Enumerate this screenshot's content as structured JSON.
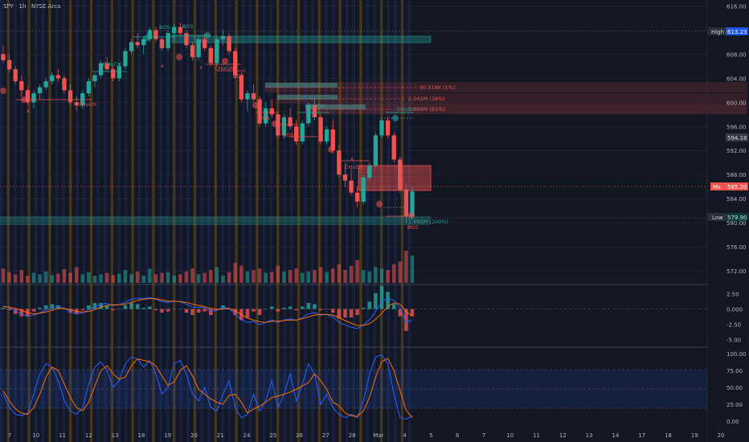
{
  "symbol_label": "SPY · 1h · NYSE Arca",
  "colors": {
    "background": "#131722",
    "bull": "#26a69a",
    "bear": "#ef5350",
    "orange_band": "#f5a623",
    "blue_band": "#2962ff",
    "macd": "#2962ff",
    "signal": "#ff6d00",
    "stoch_k": "#2962ff",
    "stoch_d": "#ff6d00"
  },
  "price_axis": {
    "ticks": [
      "616.00",
      "612.00",
      "608.00",
      "604.00",
      "600.00",
      "596.00",
      "592.00",
      "588.00",
      "584.00",
      "580.00",
      "576.00",
      "572.00"
    ],
    "high_tag": {
      "label": "High",
      "value": "613.23"
    },
    "low_tag": {
      "label": "Low",
      "value": "579.90"
    },
    "price_tag": {
      "value": "594.18"
    },
    "current_tag": {
      "label": "Ms",
      "value": "585.20"
    }
  },
  "macd_axis": {
    "ticks": [
      "2.50",
      "0.000",
      "-2.50",
      "-5.00"
    ]
  },
  "stoch_axis": {
    "ticks": [
      "100.00",
      "75.00",
      "50.00",
      "25.00",
      "0.00"
    ]
  },
  "time_axis": {
    "labels": [
      "7",
      "10",
      "11",
      "12",
      "13",
      "18",
      "19",
      "20",
      "21",
      "24",
      "25",
      "26",
      "27",
      "28",
      "Mar",
      "4",
      "5",
      "6",
      "7",
      "10",
      "11",
      "12",
      "13",
      "14",
      "17",
      "18",
      "19",
      "20"
    ]
  },
  "annotations": {
    "bos_1": "BOS",
    "bos_2": "BOS",
    "bos_3": "BOS",
    "bos_4": "BOS",
    "bos_5": "BOS",
    "bos_6": "BOS",
    "choch_1": "CHoCH",
    "choch_2": "CHoCH",
    "choch_3": "CHoCH",
    "choch_4": "CHoCH",
    "choch_5": "CHoCH",
    "choch_6": "CHoCH",
    "x_1": "x",
    "x_2": "x",
    "x_3": "x",
    "x_4": "x",
    "vol_1": "90.418K (1%)",
    "vol_2": "2.042M (38%)",
    "vol_3": "3.389M (61%)",
    "vol_4": "2.695M (100%)"
  },
  "chart_data": {
    "type": "candlestick",
    "ylim": [
      570,
      617
    ],
    "candles": [
      [
        608,
        609.5,
        606.5,
        607
      ],
      [
        607,
        608,
        605,
        605.5
      ],
      [
        605.5,
        606,
        603,
        603.5
      ],
      [
        603.5,
        604.5,
        601,
        602
      ],
      [
        602,
        602.5,
        599.5,
        600
      ],
      [
        600,
        602,
        599,
        601.5
      ],
      [
        601.5,
        603,
        600.5,
        602.5
      ],
      [
        602.5,
        604,
        602,
        603.5
      ],
      [
        603.5,
        605,
        603,
        604.5
      ],
      [
        604.5,
        605.5,
        603.5,
        604
      ],
      [
        604,
        604.5,
        601.5,
        602
      ],
      [
        602,
        603,
        599.5,
        600
      ],
      [
        600,
        601,
        598.5,
        599.5
      ],
      [
        599.5,
        602,
        599,
        601.5
      ],
      [
        601.5,
        604,
        601,
        603.5
      ],
      [
        603.5,
        605,
        602.5,
        604.5
      ],
      [
        604.5,
        607,
        604,
        606.5
      ],
      [
        606.5,
        607.5,
        605,
        605.5
      ],
      [
        605.5,
        606,
        603.5,
        604
      ],
      [
        604,
        606.5,
        603.5,
        606
      ],
      [
        606,
        609,
        605.5,
        608.5
      ],
      [
        608.5,
        610.5,
        608,
        610
      ],
      [
        610,
        611.5,
        609,
        609.5
      ],
      [
        609.5,
        611,
        608,
        610.5
      ],
      [
        610.5,
        612.5,
        610,
        612
      ],
      [
        612,
        612.5,
        610,
        610.5
      ],
      [
        610.5,
        611,
        608.5,
        609
      ],
      [
        609,
        612,
        608.5,
        611.5
      ],
      [
        611.5,
        613,
        610.5,
        612.5
      ],
      [
        612.5,
        613.2,
        611,
        611.5
      ],
      [
        611.5,
        612,
        609,
        609.5
      ],
      [
        609.5,
        610,
        607,
        607.5
      ],
      [
        607.5,
        611,
        607,
        610.5
      ],
      [
        610.5,
        611.5,
        608.5,
        609
      ],
      [
        609,
        609.5,
        606,
        606.5
      ],
      [
        606.5,
        611,
        606,
        610.5
      ],
      [
        610.5,
        612,
        609.5,
        611
      ],
      [
        611,
        611.5,
        608,
        608.5
      ],
      [
        608.5,
        609,
        604,
        604.5
      ],
      [
        604.5,
        605,
        600,
        600.5
      ],
      [
        600.5,
        602,
        598.5,
        601.5
      ],
      [
        601.5,
        603,
        600,
        600.5
      ],
      [
        600.5,
        601,
        596,
        596.5
      ],
      [
        596.5,
        600,
        596,
        599
      ],
      [
        599,
        600.5,
        597.5,
        598
      ],
      [
        598,
        598.5,
        594,
        594.5
      ],
      [
        594.5,
        598,
        594,
        597.5
      ],
      [
        597.5,
        599,
        595.5,
        596
      ],
      [
        596,
        597,
        593,
        593.5
      ],
      [
        593.5,
        597,
        593,
        596.5
      ],
      [
        596.5,
        600,
        596,
        599.5
      ],
      [
        599.5,
        600.5,
        597,
        597.5
      ],
      [
        597.5,
        598,
        593,
        593.5
      ],
      [
        593.5,
        596,
        593,
        595.5
      ],
      [
        595.5,
        597,
        591.5,
        592
      ],
      [
        592,
        593,
        587.5,
        588
      ],
      [
        588,
        590,
        586,
        587
      ],
      [
        587,
        589,
        584.5,
        585
      ],
      [
        585,
        586,
        582.5,
        583.5
      ],
      [
        583.5,
        588,
        583,
        587.5
      ],
      [
        587.5,
        590,
        587,
        589.5
      ],
      [
        589.5,
        595,
        589,
        594.5
      ],
      [
        594.5,
        597.5,
        594,
        597
      ],
      [
        597,
        597.5,
        594,
        594.5
      ],
      [
        594.5,
        595,
        590,
        590.5
      ],
      [
        590.5,
        591,
        585,
        585.5
      ],
      [
        585.5,
        586.5,
        579.9,
        581
      ],
      [
        581,
        586,
        580.5,
        585.2
      ]
    ],
    "volume": [
      20,
      15,
      12,
      18,
      10,
      14,
      12,
      16,
      11,
      13,
      19,
      14,
      22,
      12,
      15,
      10,
      12,
      14,
      11,
      13,
      18,
      12,
      16,
      10,
      20,
      12,
      14,
      15,
      10,
      12,
      16,
      20,
      12,
      14,
      18,
      22,
      10,
      15,
      28,
      24,
      16,
      18,
      20,
      14,
      15,
      24,
      16,
      18,
      20,
      14,
      16,
      18,
      22,
      15,
      20,
      26,
      18,
      24,
      32,
      18,
      16,
      22,
      20,
      18,
      26,
      30,
      45,
      38
    ],
    "macd": [
      0.5,
      0.2,
      -0.3,
      -0.8,
      -1.2,
      -1.0,
      -0.6,
      -0.2,
      0.2,
      0.4,
      0.1,
      -0.4,
      -0.8,
      -0.6,
      -0.1,
      0.4,
      0.8,
      0.9,
      0.6,
      0.7,
      1.1,
      1.6,
      1.8,
      1.7,
      1.9,
      1.6,
      1.2,
      1.1,
      1.3,
      1.2,
      0.8,
      0.3,
      0.3,
      0.2,
      -0.4,
      -0.2,
      0.3,
      0.1,
      -0.8,
      -1.8,
      -2.2,
      -2.0,
      -2.6,
      -2.2,
      -1.8,
      -2.2,
      -1.8,
      -1.6,
      -1.9,
      -1.4,
      -0.8,
      -0.6,
      -1.0,
      -0.9,
      -1.3,
      -2.2,
      -2.6,
      -3.0,
      -3.2,
      -2.6,
      -1.8,
      -0.4,
      1.2,
      1.8,
      1.4,
      0.2,
      -2.2,
      -1.8
    ],
    "signal": [
      0.4,
      0.3,
      0.1,
      -0.2,
      -0.6,
      -0.8,
      -0.7,
      -0.5,
      -0.2,
      0.1,
      0.1,
      -0.1,
      -0.4,
      -0.5,
      -0.4,
      -0.1,
      0.3,
      0.6,
      0.7,
      0.7,
      0.8,
      1.1,
      1.4,
      1.6,
      1.7,
      1.7,
      1.5,
      1.3,
      1.3,
      1.2,
      1.1,
      0.8,
      0.6,
      0.4,
      0.1,
      -0.1,
      0.0,
      0.1,
      -0.3,
      -0.9,
      -1.5,
      -1.8,
      -2.1,
      -2.2,
      -2.0,
      -2.0,
      -1.9,
      -1.8,
      -1.8,
      -1.6,
      -1.3,
      -1.0,
      -0.9,
      -0.9,
      -1.0,
      -1.4,
      -1.9,
      -2.3,
      -2.7,
      -2.7,
      -2.4,
      -1.7,
      -0.7,
      0.4,
      1.0,
      0.8,
      -0.4,
      -1.2
    ],
    "stoch_k": [
      40,
      20,
      10,
      8,
      12,
      40,
      70,
      85,
      80,
      60,
      30,
      15,
      10,
      20,
      55,
      80,
      88,
      75,
      50,
      60,
      85,
      95,
      92,
      80,
      90,
      70,
      40,
      50,
      85,
      90,
      70,
      40,
      30,
      50,
      20,
      15,
      40,
      60,
      20,
      5,
      10,
      40,
      15,
      30,
      60,
      20,
      40,
      70,
      30,
      55,
      85,
      70,
      25,
      40,
      20,
      10,
      5,
      10,
      5,
      30,
      70,
      95,
      98,
      85,
      40,
      5,
      3,
      8
    ],
    "stoch_d": [
      45,
      30,
      18,
      12,
      10,
      20,
      40,
      65,
      80,
      75,
      55,
      35,
      20,
      15,
      28,
      52,
      75,
      82,
      70,
      62,
      65,
      82,
      92,
      90,
      88,
      82,
      67,
      53,
      58,
      75,
      82,
      67,
      47,
      40,
      33,
      28,
      25,
      38,
      40,
      28,
      12,
      18,
      22,
      28,
      35,
      37,
      40,
      43,
      47,
      52,
      57,
      70,
      60,
      47,
      28,
      23,
      12,
      8,
      7,
      15,
      35,
      65,
      88,
      93,
      75,
      45,
      16,
      5
    ]
  }
}
